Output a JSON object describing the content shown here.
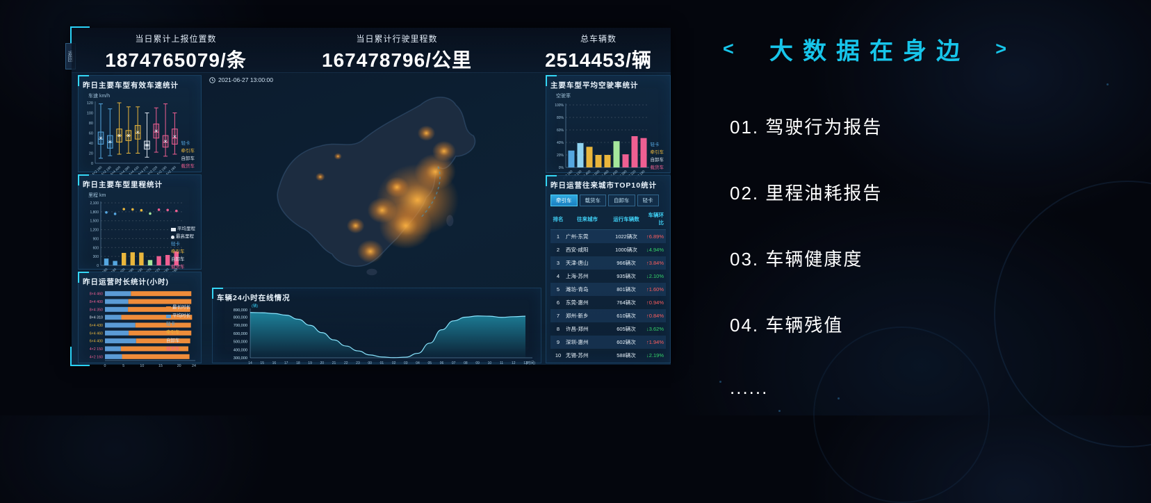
{
  "back_tab": "返回",
  "palette": {
    "blue": "#55a7e0",
    "skyblue": "#8fd3f0",
    "yellow": "#e9b63c",
    "white": "#d9e2ec",
    "pink": "#ef5f92",
    "green": "#a5e79b",
    "orange": "#ef8c3a",
    "barblue": "#5b9bd5",
    "accent": "#1fc9ec",
    "up": "#ff5e5e",
    "down": "#35d46a"
  },
  "header": {
    "stats": [
      {
        "label": "当日累计上报位置数",
        "value": "1874765079/条"
      },
      {
        "label": "当日累计行驶里程数",
        "value": "167478796/公里"
      },
      {
        "label": "总车辆数",
        "value": "2514453/辆"
      }
    ]
  },
  "map": {
    "timestamp": "2021-06-27 13:00:00"
  },
  "right_pane": {
    "left_arrow": "<",
    "right_arrow": ">",
    "title": "大数据在身边",
    "items": [
      "01. 驾驶行为报告",
      "02. 里程油耗报告",
      "03. 车辆健康度",
      "04. 车辆残值"
    ],
    "more": "......"
  },
  "chart_data": [
    {
      "type": "box",
      "title": "昨日主要车型有效车速统计",
      "ylabel": "车速 km/h",
      "ylim": [
        0,
        120
      ],
      "ytick_step": 20,
      "categories": [
        "4×2 180",
        "4×2 190",
        "6×4 400",
        "6×4 390",
        "6×4 430",
        "8×4 270",
        "4×2 220",
        "4×2 190",
        "4×2 180"
      ],
      "colors": [
        "blue",
        "blue",
        "yellow",
        "yellow",
        "yellow",
        "white",
        "pink",
        "pink",
        "pink"
      ],
      "stats": [
        [
          10,
          38,
          48,
          62,
          118
        ],
        [
          15,
          30,
          42,
          55,
          108
        ],
        [
          18,
          42,
          55,
          68,
          120
        ],
        [
          20,
          45,
          55,
          65,
          112
        ],
        [
          20,
          48,
          60,
          75,
          112
        ],
        [
          12,
          28,
          36,
          44,
          100
        ],
        [
          22,
          50,
          62,
          78,
          110
        ],
        [
          14,
          32,
          42,
          55,
          118
        ],
        [
          18,
          38,
          50,
          68,
          100
        ]
      ],
      "legend": [
        {
          "label": "轻卡",
          "color": "blue"
        },
        {
          "label": "牵引车",
          "color": "yellow"
        },
        {
          "label": "自卸车",
          "color": "white"
        },
        {
          "label": "载货车",
          "color": "pink"
        }
      ]
    },
    {
      "type": "bar+scatter",
      "title": "昨日主要车型里程统计",
      "ylabel": "里程 km",
      "ylim": [
        0,
        2100
      ],
      "ytick_step": 300,
      "categories": [
        "4×2 180",
        "4×2 190",
        "6×4 400",
        "6×4 390",
        "6×4 430",
        "8×4 270",
        "4×2 220",
        "4×2 190",
        "4×2 180"
      ],
      "colors": [
        "blue",
        "blue",
        "yellow",
        "yellow",
        "yellow",
        "green",
        "pink",
        "pink",
        "pink"
      ],
      "avg_values": [
        230,
        150,
        420,
        440,
        430,
        180,
        310,
        350,
        470
      ],
      "max_values": [
        1780,
        1730,
        1890,
        1880,
        1850,
        1740,
        1870,
        1860,
        1830
      ],
      "legend": [
        {
          "label": "平均里程",
          "marker": "square"
        },
        {
          "label": "最高里程",
          "marker": "circle"
        },
        {
          "label": "轻卡",
          "color": "blue"
        },
        {
          "label": "牵引车",
          "color": "yellow"
        },
        {
          "label": "自卸车",
          "color": "white"
        },
        {
          "label": "载货车",
          "color": "pink"
        }
      ]
    },
    {
      "type": "stacked-hbar",
      "title": "昨日运营时长统计(小时)",
      "xlim": [
        0,
        24
      ],
      "xticks": [
        0,
        5,
        10,
        15,
        20,
        24
      ],
      "categories": [
        "8×4 460",
        "8×4 400",
        "8×4 350",
        "8×4 310",
        "6×4 430",
        "6×4 460",
        "6×4 400",
        "4×2 150",
        "4×2 160"
      ],
      "cat_colors": [
        "pink",
        "pink",
        "pink",
        "white",
        "yellow",
        "yellow",
        "yellow",
        "pink",
        "pink"
      ],
      "avg": [
        7.0,
        6.3,
        6.2,
        4.4,
        8.2,
        6.4,
        8.4,
        4.3,
        4.6
      ],
      "max": [
        23.3,
        23.3,
        23.0,
        23.5,
        23.2,
        23.3,
        23.0,
        22.5,
        22.8
      ],
      "legend": [
        {
          "label": "最长时长",
          "color": "orange",
          "swatch": true
        },
        {
          "label": "平均时长",
          "color": "barblue",
          "swatch": true
        },
        {
          "label": "轻卡",
          "color": "blue"
        },
        {
          "label": "牵引车",
          "color": "yellow"
        },
        {
          "label": "自卸车",
          "color": "white"
        },
        {
          "label": "载货车",
          "color": "pink"
        }
      ]
    },
    {
      "type": "bar",
      "title": "主要车型平均空驶率统计",
      "ylabel": "空驶率",
      "ylim": [
        0,
        100
      ],
      "ytick_step": 20,
      "categories": [
        "4×2 160",
        "4×2 130",
        "6×4 400",
        "6×4 500",
        "6×4 460",
        "8×4 430",
        "8×4 390",
        "4×2 220",
        "4×2 190"
      ],
      "colors": [
        "blue",
        "skyblue",
        "yellow",
        "yellow",
        "yellow",
        "green",
        "pink",
        "pink",
        "pink"
      ],
      "values": [
        27,
        39,
        33,
        20,
        20,
        42,
        21,
        50,
        47
      ],
      "legend": [
        {
          "label": "轻卡",
          "color": "blue"
        },
        {
          "label": "牵引车",
          "color": "yellow"
        },
        {
          "label": "自卸车",
          "color": "white"
        },
        {
          "label": "载货车",
          "color": "pink"
        }
      ]
    },
    {
      "type": "area",
      "title": "车辆24小时在线情况",
      "ylabel_unit": "(辆)",
      "xlabel_unit": "(时间)",
      "ylim": [
        300000,
        890000
      ],
      "yticks": [
        300000,
        400000,
        500000,
        600000,
        700000,
        800000,
        890000
      ],
      "x": [
        "14",
        "15",
        "16",
        "17",
        "18",
        "19",
        "20",
        "21",
        "22",
        "23",
        "00",
        "01",
        "02",
        "03",
        "04",
        "05",
        "06",
        "07",
        "08",
        "09",
        "10",
        "11",
        "12",
        "13"
      ],
      "values": [
        858000,
        855000,
        845000,
        825000,
        775000,
        700000,
        610000,
        520000,
        445000,
        385000,
        335000,
        310000,
        302000,
        308000,
        355000,
        480000,
        645000,
        755000,
        800000,
        815000,
        812000,
        798000,
        806000,
        812000
      ]
    },
    {
      "type": "table",
      "title": "昨日运营往来城市TOP10统计",
      "tabs": [
        {
          "label": "牵引车",
          "active": true
        },
        {
          "label": "载货车",
          "active": false
        },
        {
          "label": "自卸车",
          "active": false
        },
        {
          "label": "轻卡",
          "active": false
        }
      ],
      "headers": [
        "排名",
        "往来城市",
        "运行车辆数",
        "车辆环比"
      ],
      "rows": [
        {
          "rank": "1",
          "route": "广州-东莞",
          "count": "1022辆次",
          "change": "↑6.89%",
          "dir": "up"
        },
        {
          "rank": "2",
          "route": "西安-咸阳",
          "count": "1000辆次",
          "change": "↓4.94%",
          "dir": "down"
        },
        {
          "rank": "3",
          "route": "天津-唐山",
          "count": "966辆次",
          "change": "↑3.84%",
          "dir": "up"
        },
        {
          "rank": "4",
          "route": "上海-苏州",
          "count": "935辆次",
          "change": "↓2.10%",
          "dir": "down"
        },
        {
          "rank": "5",
          "route": "潍坊-青岛",
          "count": "801辆次",
          "change": "↑1.60%",
          "dir": "up"
        },
        {
          "rank": "6",
          "route": "东莞-惠州",
          "count": "764辆次",
          "change": "↑0.94%",
          "dir": "up"
        },
        {
          "rank": "7",
          "route": "郑州-新乡",
          "count": "610辆次",
          "change": "↑0.84%",
          "dir": "up"
        },
        {
          "rank": "8",
          "route": "许昌-郑州",
          "count": "605辆次",
          "change": "↓3.62%",
          "dir": "down"
        },
        {
          "rank": "9",
          "route": "深圳-惠州",
          "count": "602辆次",
          "change": "↑1.94%",
          "dir": "up"
        },
        {
          "rank": "10",
          "route": "无锡-苏州",
          "count": "588辆次",
          "change": "↓2.19%",
          "dir": "down"
        }
      ]
    }
  ]
}
